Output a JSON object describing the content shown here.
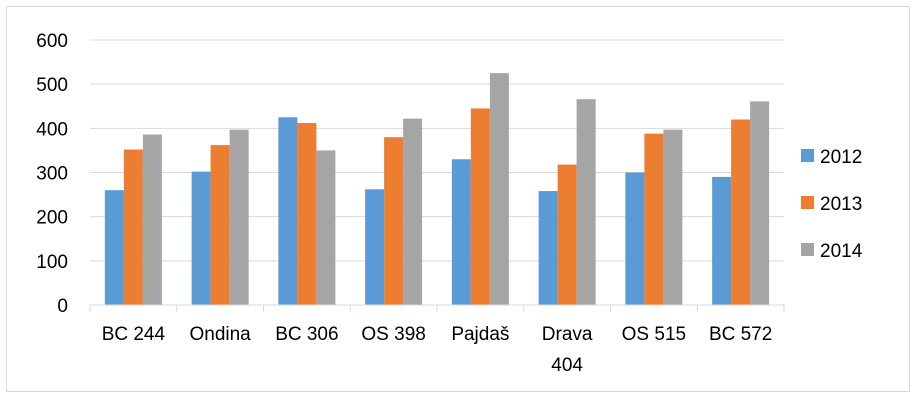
{
  "chart_data": {
    "type": "bar",
    "categories": [
      [
        "BC 244"
      ],
      [
        "Ondina"
      ],
      [
        "BC 306"
      ],
      [
        "OS 398"
      ],
      [
        "Pajdaš"
      ],
      [
        "Drava",
        "404"
      ],
      [
        "OS 515"
      ],
      [
        "BC 572"
      ]
    ],
    "series": [
      {
        "name": "2012",
        "color": "#5b9bd5",
        "values": [
          260,
          302,
          425,
          262,
          330,
          258,
          300,
          290
        ]
      },
      {
        "name": "2013",
        "color": "#ed7d31",
        "values": [
          352,
          362,
          412,
          380,
          445,
          318,
          388,
          420
        ]
      },
      {
        "name": "2014",
        "color": "#a5a5a5",
        "values": [
          386,
          397,
          350,
          422,
          525,
          466,
          397,
          461
        ]
      }
    ],
    "ylim": [
      0,
      600
    ],
    "yticks": [
      0,
      100,
      200,
      300,
      400,
      500,
      600
    ],
    "grid": true,
    "legend": "right",
    "gridColor": "#d9d9d9"
  }
}
